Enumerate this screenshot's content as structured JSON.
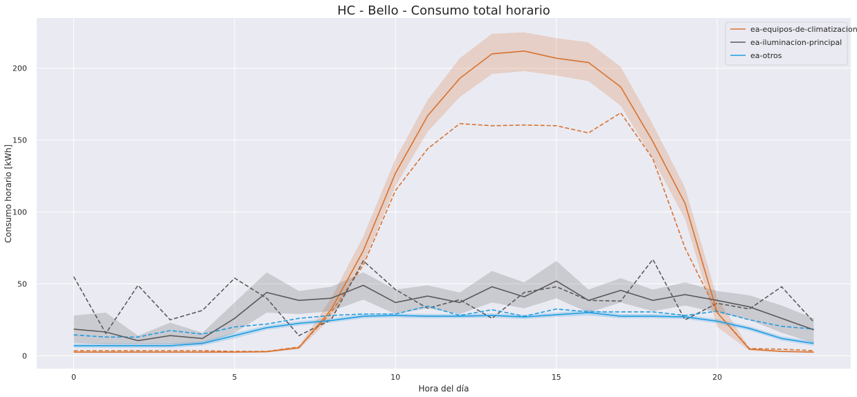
{
  "chart_data": {
    "type": "line",
    "title": "HC - Bello - Consumo total horario",
    "xlabel": "Hora del día",
    "ylabel": "Consumo horario [kWh]",
    "xlim": [
      -1.15,
      24.15
    ],
    "ylim": [
      -9,
      235
    ],
    "xticks": [
      0,
      5,
      10,
      15,
      20
    ],
    "yticks": [
      0,
      50,
      100,
      150,
      200
    ],
    "grid": true,
    "legend_position": "top-right",
    "x": [
      0,
      1,
      2,
      3,
      4,
      5,
      6,
      7,
      8,
      9,
      10,
      11,
      12,
      13,
      14,
      15,
      16,
      17,
      18,
      19,
      20,
      21,
      22,
      23
    ],
    "series": [
      {
        "name": "ea-equipos-de-climatizacion",
        "color": "#d8722f",
        "values": [
          2.5,
          2.5,
          2.5,
          2.5,
          2.5,
          2.5,
          2.8,
          5.5,
          32,
          73,
          127,
          167,
          193,
          210,
          212,
          207,
          204,
          187,
          149,
          106,
          30,
          4.5,
          3,
          2.5
        ],
        "band_lower": [
          2,
          2,
          2,
          2,
          2,
          2,
          2.2,
          4.5,
          26,
          64,
          118,
          156,
          180,
          196,
          198,
          195,
          191,
          174,
          137,
          95,
          20,
          3.5,
          2.5,
          2
        ],
        "band_upper": [
          3,
          3,
          3,
          3,
          3,
          3,
          3.4,
          6.5,
          40,
          83,
          137,
          178,
          207,
          224,
          225,
          221,
          218,
          201,
          161,
          117,
          40,
          5.5,
          3.5,
          3
        ],
        "dashed": [
          3.5,
          3.5,
          3.5,
          3.5,
          3.5,
          3,
          3,
          6,
          30,
          63,
          115,
          144,
          161.5,
          160,
          160.5,
          160,
          155,
          169,
          137,
          75,
          30,
          5,
          4.5,
          3.5
        ]
      },
      {
        "name": "ea-iluminacion-principal",
        "color": "#5a5a5a",
        "values": [
          18.5,
          16.5,
          10.5,
          14,
          12,
          26,
          44,
          38.5,
          40,
          49,
          37,
          41.5,
          37,
          48,
          41,
          52,
          38.5,
          45.5,
          38.5,
          42.5,
          38.5,
          34,
          26,
          18
        ],
        "band_lower": [
          9,
          8,
          8,
          8,
          8,
          16,
          30,
          29,
          31,
          39,
          29,
          33,
          29,
          37,
          33,
          40,
          30,
          37,
          31,
          35,
          30,
          25,
          16,
          9
        ],
        "band_upper": [
          28,
          30,
          14,
          23,
          16,
          37,
          58,
          45,
          48,
          58,
          46,
          49,
          44,
          59,
          51,
          66,
          46,
          54,
          46,
          51,
          45,
          42,
          35,
          26
        ],
        "dashed": [
          55,
          15.5,
          49,
          25,
          31.5,
          54,
          40,
          14,
          25,
          66,
          46,
          33,
          39,
          26,
          44,
          48,
          38.5,
          38,
          67,
          25,
          36.5,
          32.5,
          48,
          23.5
        ]
      },
      {
        "name": "ea-otros",
        "color": "#1e9de0",
        "values": [
          7,
          7,
          7,
          7,
          8.5,
          14,
          19.5,
          22.5,
          24.5,
          27.5,
          28,
          27.5,
          27.5,
          28,
          27,
          28.5,
          30,
          27.5,
          27.5,
          27,
          24,
          19,
          12,
          8.5
        ],
        "band_lower": [
          5.5,
          5.5,
          5.5,
          5.5,
          7,
          12,
          18,
          21,
          23,
          26,
          26.5,
          26,
          26,
          26.5,
          25.5,
          27,
          28,
          26,
          26,
          25.5,
          22.5,
          17.5,
          10.5,
          7
        ],
        "band_upper": [
          8.5,
          8.5,
          8.5,
          8.5,
          10,
          16,
          21,
          24,
          26,
          29,
          29.5,
          29,
          29,
          29.5,
          28.5,
          30,
          32,
          29,
          29,
          28.5,
          25.5,
          20.5,
          13.5,
          10
        ],
        "dashed": [
          14.5,
          13,
          13,
          17.5,
          15,
          20,
          22,
          26,
          28,
          29,
          29,
          34.5,
          28,
          32,
          27.5,
          32.5,
          30.5,
          30.5,
          30.5,
          28,
          31,
          25,
          20.5,
          18.5
        ]
      }
    ]
  }
}
